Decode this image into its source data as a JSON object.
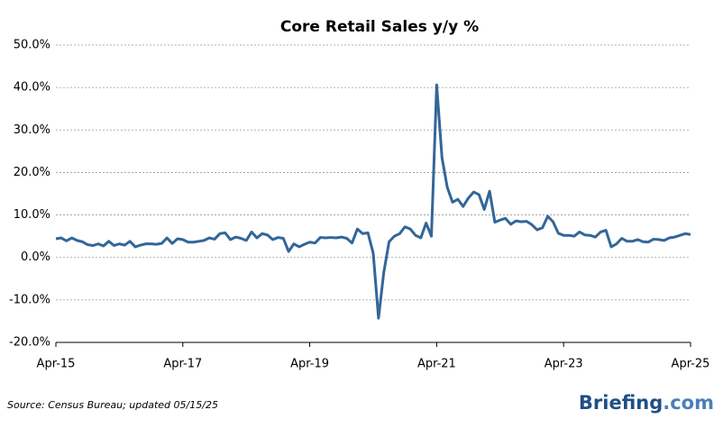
{
  "chart_data": {
    "type": "line",
    "title": "Core Retail Sales y/y %",
    "categories": [
      "Apr-15",
      null,
      null,
      null,
      null,
      null,
      null,
      null,
      null,
      null,
      null,
      null,
      null,
      null,
      null,
      null,
      null,
      null,
      null,
      null,
      null,
      null,
      null,
      null,
      "Apr-17",
      null,
      null,
      null,
      null,
      null,
      null,
      null,
      null,
      null,
      null,
      null,
      null,
      null,
      null,
      null,
      null,
      null,
      null,
      null,
      null,
      null,
      null,
      null,
      "Apr-19",
      null,
      null,
      null,
      null,
      null,
      null,
      null,
      null,
      null,
      null,
      null,
      null,
      null,
      null,
      null,
      null,
      null,
      null,
      null,
      null,
      null,
      null,
      null,
      "Apr-21",
      null,
      null,
      null,
      null,
      null,
      null,
      null,
      null,
      null,
      null,
      null,
      null,
      null,
      null,
      null,
      null,
      null,
      null,
      null,
      null,
      null,
      null,
      null,
      "Apr-23",
      null,
      null,
      null,
      null,
      null,
      null,
      null,
      null,
      null,
      null,
      null,
      null,
      null,
      null,
      null,
      null,
      null,
      null,
      null,
      null,
      null,
      null,
      null,
      "Apr-25"
    ],
    "series": [
      {
        "color": "#336699",
        "values": [
          4.4,
          4.6,
          3.9,
          4.6,
          4.0,
          3.7,
          3.0,
          2.8,
          3.2,
          2.7,
          3.8,
          2.8,
          3.2,
          2.9,
          3.8,
          2.5,
          2.9,
          3.2,
          3.2,
          3.1,
          3.3,
          4.6,
          3.3,
          4.4,
          4.2,
          3.6,
          3.6,
          3.8,
          4.0,
          4.6,
          4.3,
          5.6,
          5.8,
          4.2,
          4.8,
          4.5,
          4.0,
          6.0,
          4.6,
          5.6,
          5.3,
          4.2,
          4.7,
          4.5,
          1.4,
          3.2,
          2.5,
          3.1,
          3.6,
          3.4,
          4.7,
          4.6,
          4.7,
          4.6,
          4.8,
          4.5,
          3.4,
          6.7,
          5.6,
          5.8,
          1.0,
          -14.3,
          -3.5,
          3.7,
          5.0,
          5.6,
          7.2,
          6.7,
          5.2,
          4.6,
          8.1,
          5.0,
          40.6,
          23.5,
          16.5,
          13.0,
          13.7,
          12.0,
          14.0,
          15.4,
          14.8,
          11.3,
          15.6,
          8.3,
          8.8,
          9.2,
          7.8,
          8.6,
          8.4,
          8.5,
          7.7,
          6.5,
          7.0,
          9.7,
          8.4,
          5.7,
          5.2,
          5.2,
          5.0,
          6.0,
          5.3,
          5.2,
          4.8,
          6.0,
          6.4,
          2.5,
          3.2,
          4.5,
          3.8,
          3.8,
          4.2,
          3.7,
          3.6,
          4.3,
          4.2,
          4.0,
          4.6,
          4.8,
          5.2,
          5.6,
          5.4
        ]
      }
    ],
    "ylim": [
      -20,
      50
    ],
    "yticks": [
      {
        "value": -20,
        "label": "-20.0%"
      },
      {
        "value": -10,
        "label": "-10.0%"
      },
      {
        "value": 0,
        "label": "0.0%"
      },
      {
        "value": 10,
        "label": "10.0%"
      },
      {
        "value": 20,
        "label": "20.0%"
      },
      {
        "value": 30,
        "label": "30.0%"
      },
      {
        "value": 40,
        "label": "40.0%"
      },
      {
        "value": 50,
        "label": "50.0%"
      }
    ],
    "grid": true,
    "negative_tick_color": "#cc0000",
    "source": "Source:  Census Bureau;  updated  05/15/25",
    "logo": [
      "Briefing",
      ".com"
    ]
  }
}
